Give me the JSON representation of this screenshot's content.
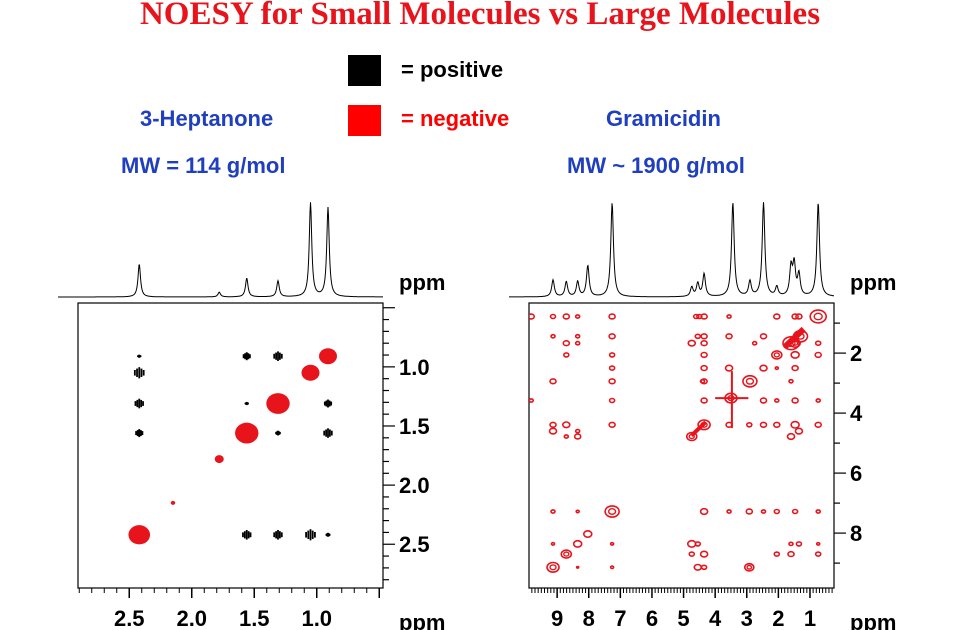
{
  "title": "NOESY for Small Molecules vs Large Molecules",
  "legend": [
    {
      "label": "= positive",
      "color": "#000000"
    },
    {
      "label": "= negative",
      "color": "#ff0000"
    }
  ],
  "left_panel": {
    "name": "3-Heptanone",
    "mw": "MW = 114 g/mol"
  },
  "right_panel": {
    "name": "Gramicidin",
    "mw": "MW ~ 1900 g/mol"
  },
  "chart_data": [
    {
      "type": "scatter",
      "title": "3-Heptanone",
      "xlabel": "ppm",
      "ylabel": "ppm",
      "xlim": [
        2.91,
        0.47
      ],
      "ylim": [
        0.46,
        2.87
      ],
      "xticks": [
        "2.5",
        "2.0",
        "1.5",
        "1.0"
      ],
      "yticks": [
        "1.0",
        "1.5",
        "2.0",
        "2.5"
      ],
      "spectrum_1d": [
        [
          2.42,
          0.35
        ],
        [
          1.56,
          0.2
        ],
        [
          1.31,
          0.17
        ],
        [
          1.05,
          1.0
        ],
        [
          0.91,
          0.95
        ],
        [
          1.78,
          0.05
        ]
      ],
      "peaks": [
        [
          0.91,
          0.91,
          "neg",
          1
        ],
        [
          1.05,
          1.05,
          "neg",
          1
        ],
        [
          1.31,
          1.31,
          "neg",
          1.3
        ],
        [
          1.56,
          1.56,
          "neg",
          1.3
        ],
        [
          1.78,
          1.78,
          "neg",
          0.5
        ],
        [
          2.15,
          2.15,
          "neg",
          0.25
        ],
        [
          2.42,
          2.42,
          "neg",
          1.2
        ],
        [
          2.42,
          0.91,
          "pos",
          0.2
        ],
        [
          1.56,
          0.91,
          "pos",
          0.5
        ],
        [
          1.31,
          0.91,
          "pos",
          0.6
        ],
        [
          2.42,
          1.05,
          "pos",
          0.7
        ],
        [
          2.42,
          1.31,
          "pos",
          0.6
        ],
        [
          1.56,
          1.31,
          "pos",
          0.2
        ],
        [
          0.91,
          1.31,
          "pos",
          0.5
        ],
        [
          2.42,
          1.56,
          "pos",
          0.5
        ],
        [
          1.31,
          1.56,
          "pos",
          0.3
        ],
        [
          0.91,
          1.56,
          "pos",
          0.6
        ],
        [
          1.56,
          2.42,
          "pos",
          0.6
        ],
        [
          1.31,
          2.42,
          "pos",
          0.6
        ],
        [
          1.05,
          2.42,
          "pos",
          0.7
        ],
        [
          0.91,
          2.42,
          "pos",
          0.25
        ]
      ]
    },
    {
      "type": "scatter",
      "title": "Gramicidin",
      "xlabel": "ppm",
      "ylabel": "ppm",
      "xlim": [
        9.89,
        0.24
      ],
      "ylim": [
        0.33,
        9.83
      ],
      "xticks": [
        "9",
        "8",
        "7",
        "6",
        "5",
        "4",
        "3",
        "2",
        "1"
      ],
      "yticks": [
        "2",
        "4",
        "6",
        "8"
      ],
      "spectrum_1d": [
        [
          9.13,
          0.18
        ],
        [
          8.71,
          0.16
        ],
        [
          8.35,
          0.16
        ],
        [
          8.03,
          0.33
        ],
        [
          7.26,
          1.0
        ],
        [
          4.74,
          0.1
        ],
        [
          4.55,
          0.14
        ],
        [
          4.35,
          0.24
        ],
        [
          3.44,
          1.0
        ],
        [
          2.9,
          0.16
        ],
        [
          2.47,
          1.0
        ],
        [
          2.05,
          0.1
        ],
        [
          1.6,
          0.3
        ],
        [
          1.5,
          0.33
        ],
        [
          1.35,
          0.23
        ],
        [
          0.74,
          1.0
        ]
      ],
      "peaks": [
        [
          9.82,
          0.78,
          "neg",
          0.6
        ],
        [
          9.13,
          0.78,
          "neg",
          0.5
        ],
        [
          8.71,
          0.78,
          "neg",
          0.6
        ],
        [
          8.35,
          0.78,
          "neg",
          0.4
        ],
        [
          7.26,
          0.78,
          "neg",
          0.6
        ],
        [
          4.6,
          0.78,
          "neg",
          0.5
        ],
        [
          4.5,
          0.78,
          "neg",
          0.5
        ],
        [
          4.35,
          0.78,
          "neg",
          0.6
        ],
        [
          3.56,
          0.78,
          "neg",
          0.4
        ],
        [
          2.05,
          0.78,
          "neg",
          0.6
        ],
        [
          1.47,
          0.78,
          "neg",
          0.6
        ],
        [
          1.35,
          0.78,
          "neg",
          0.6
        ],
        [
          0.74,
          0.78,
          "neg",
          1.6
        ],
        [
          9.13,
          1.44,
          "neg",
          0.4
        ],
        [
          8.35,
          1.44,
          "neg",
          0.4
        ],
        [
          7.26,
          1.44,
          "neg",
          0.6
        ],
        [
          4.55,
          1.44,
          "neg",
          0.5
        ],
        [
          4.35,
          1.44,
          "neg",
          0.6
        ],
        [
          3.56,
          1.44,
          "neg",
          0.6
        ],
        [
          2.47,
          1.44,
          "neg",
          0.6
        ],
        [
          1.3,
          1.44,
          "neg",
          1.4
        ],
        [
          8.71,
          1.67,
          "neg",
          0.6
        ],
        [
          8.35,
          1.67,
          "neg",
          0.4
        ],
        [
          4.74,
          1.67,
          "neg",
          0.7
        ],
        [
          4.35,
          1.67,
          "neg",
          0.6
        ],
        [
          2.75,
          1.67,
          "neg",
          0.4
        ],
        [
          1.6,
          1.67,
          "neg",
          1.6
        ],
        [
          1.47,
          1.67,
          "neg",
          1
        ],
        [
          0.74,
          1.67,
          "neg",
          0.5
        ],
        [
          8.71,
          2.06,
          "neg",
          0.5
        ],
        [
          7.26,
          2.06,
          "neg",
          0.5
        ],
        [
          4.35,
          2.06,
          "neg",
          0.6
        ],
        [
          2.05,
          2.06,
          "neg",
          1
        ],
        [
          1.47,
          2.06,
          "neg",
          0.8
        ],
        [
          0.74,
          2.06,
          "neg",
          0.6
        ],
        [
          7.26,
          2.5,
          "neg",
          0.5
        ],
        [
          4.35,
          2.5,
          "neg",
          0.6
        ],
        [
          3.56,
          2.5,
          "neg",
          0.7
        ],
        [
          2.47,
          2.5,
          "neg",
          0.7
        ],
        [
          2.05,
          2.5,
          "neg",
          0.3
        ],
        [
          1.47,
          2.5,
          "neg",
          0.6
        ],
        [
          9.13,
          2.94,
          "neg",
          0.6
        ],
        [
          7.26,
          2.94,
          "neg",
          0.6
        ],
        [
          4.4,
          2.94,
          "neg",
          0.4
        ],
        [
          4.35,
          2.94,
          "neg",
          0.6
        ],
        [
          2.9,
          2.94,
          "neg",
          1.4
        ],
        [
          1.6,
          2.94,
          "neg",
          0.4
        ],
        [
          9.82,
          3.58,
          "neg",
          0.4
        ],
        [
          7.26,
          3.58,
          "neg",
          0.5
        ],
        [
          4.35,
          3.58,
          "neg",
          0.6
        ],
        [
          3.5,
          3.5,
          "neg",
          1.2
        ],
        [
          2.47,
          3.58,
          "neg",
          0.6
        ],
        [
          2.05,
          3.58,
          "neg",
          0.4
        ],
        [
          1.47,
          3.58,
          "neg",
          0.6
        ],
        [
          0.74,
          3.58,
          "neg",
          0.4
        ],
        [
          9.13,
          4.39,
          "neg",
          0.6
        ],
        [
          8.71,
          4.39,
          "neg",
          0.7
        ],
        [
          7.26,
          4.39,
          "neg",
          0.6
        ],
        [
          4.35,
          4.39,
          "neg",
          1.2
        ],
        [
          3.56,
          4.39,
          "neg",
          0.6
        ],
        [
          2.92,
          4.39,
          "neg",
          0.5
        ],
        [
          2.47,
          4.39,
          "neg",
          0.6
        ],
        [
          2.05,
          4.39,
          "neg",
          0.6
        ],
        [
          1.47,
          4.39,
          "neg",
          0.8
        ],
        [
          0.74,
          4.39,
          "neg",
          0.6
        ],
        [
          9.13,
          4.6,
          "neg",
          0.7
        ],
        [
          8.35,
          4.6,
          "neg",
          0.4
        ],
        [
          8.71,
          4.78,
          "neg",
          0.4
        ],
        [
          8.35,
          4.78,
          "neg",
          0.6
        ],
        [
          4.74,
          4.78,
          "neg",
          1
        ],
        [
          1.6,
          4.78,
          "neg",
          0.7
        ],
        [
          1.35,
          4.6,
          "neg",
          0.7
        ],
        [
          9.13,
          7.28,
          "neg",
          0.4
        ],
        [
          8.35,
          7.28,
          "neg",
          0.3
        ],
        [
          7.26,
          7.28,
          "neg",
          1.4
        ],
        [
          4.35,
          7.28,
          "neg",
          0.7
        ],
        [
          3.56,
          7.28,
          "neg",
          0.4
        ],
        [
          2.92,
          7.28,
          "neg",
          0.6
        ],
        [
          2.47,
          7.28,
          "neg",
          0.4
        ],
        [
          2.05,
          7.28,
          "neg",
          0.5
        ],
        [
          1.47,
          7.28,
          "neg",
          0.5
        ],
        [
          0.74,
          7.28,
          "neg",
          0.4
        ],
        [
          8.03,
          8.03,
          "neg",
          0.8
        ],
        [
          9.13,
          8.36,
          "neg",
          0.3
        ],
        [
          8.35,
          8.36,
          "neg",
          0.8
        ],
        [
          7.26,
          8.36,
          "neg",
          0.3
        ],
        [
          4.74,
          8.36,
          "neg",
          0.8
        ],
        [
          4.55,
          8.36,
          "neg",
          0.5
        ],
        [
          1.6,
          8.36,
          "neg",
          0.4
        ],
        [
          1.35,
          8.36,
          "neg",
          0.5
        ],
        [
          0.74,
          8.36,
          "neg",
          0.3
        ],
        [
          8.71,
          8.7,
          "neg",
          1
        ],
        [
          4.74,
          8.7,
          "neg",
          0.5
        ],
        [
          4.35,
          8.7,
          "neg",
          0.7
        ],
        [
          2.05,
          8.7,
          "neg",
          0.5
        ],
        [
          1.6,
          8.7,
          "neg",
          0.6
        ],
        [
          0.74,
          8.7,
          "neg",
          0.5
        ],
        [
          9.13,
          9.14,
          "neg",
          1.2
        ],
        [
          8.35,
          9.14,
          "neg",
          0.2
        ],
        [
          7.26,
          9.14,
          "neg",
          0.3
        ],
        [
          4.55,
          9.14,
          "neg",
          0.7
        ],
        [
          4.35,
          9.14,
          "neg",
          0.5
        ],
        [
          2.92,
          9.14,
          "neg",
          0.9
        ]
      ]
    }
  ]
}
